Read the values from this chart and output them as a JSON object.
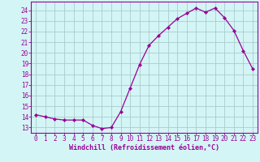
{
  "x": [
    0,
    1,
    2,
    3,
    4,
    5,
    6,
    7,
    8,
    9,
    10,
    11,
    12,
    13,
    14,
    15,
    16,
    17,
    18,
    19,
    20,
    21,
    22,
    23
  ],
  "y": [
    14.2,
    14.0,
    13.8,
    13.7,
    13.7,
    13.7,
    13.2,
    12.9,
    13.0,
    14.5,
    16.7,
    18.9,
    20.7,
    21.6,
    22.4,
    23.2,
    23.7,
    24.2,
    23.8,
    24.2,
    23.3,
    22.1,
    20.2,
    18.5
  ],
  "line_color": "#990099",
  "marker_color": "#990099",
  "bg_color": "#d4f5f5",
  "grid_color": "#aacccc",
  "xlabel": "Windchill (Refroidissement éolien,°C)",
  "xlabel_color": "#990099",
  "tick_color": "#990099",
  "spine_color": "#990099",
  "ylim_min": 12.5,
  "ylim_max": 24.8,
  "xlim_min": -0.5,
  "xlim_max": 23.5,
  "yticks": [
    13,
    14,
    15,
    16,
    17,
    18,
    19,
    20,
    21,
    22,
    23,
    24
  ],
  "xticks": [
    0,
    1,
    2,
    3,
    4,
    5,
    6,
    7,
    8,
    9,
    10,
    11,
    12,
    13,
    14,
    15,
    16,
    17,
    18,
    19,
    20,
    21,
    22,
    23
  ],
  "tick_fontsize": 5.5,
  "xlabel_fontsize": 6.0
}
